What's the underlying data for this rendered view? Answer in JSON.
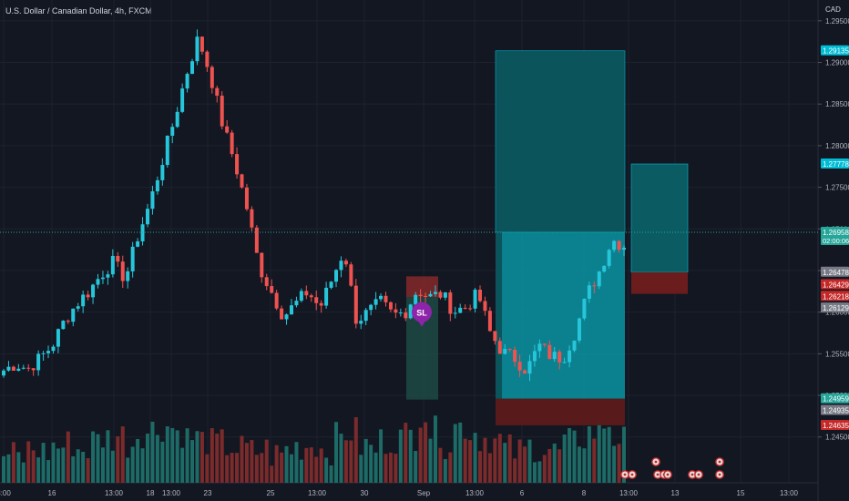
{
  "header": {
    "title": "U.S. Dollar / Canadian Dollar, 4h, FXCM"
  },
  "axis": {
    "currency": "CAD"
  },
  "colors": {
    "up": "#26c6da",
    "down": "#ef5350",
    "bg": "#131722",
    "target": "#00bcd4",
    "stop": "#8b1a1a",
    "grid": "#1e222d"
  },
  "chart_data": {
    "type": "candlestick",
    "title": "U.S. Dollar / Canadian Dollar, 4h, FXCM",
    "ylim": [
      1.2395,
      1.2975
    ],
    "y_ticks": [
      1.245,
      1.25,
      1.255,
      1.26,
      1.265,
      1.27,
      1.275,
      1.28,
      1.285,
      1.29,
      1.295
    ],
    "y_tick_labels": [
      "1.24500",
      "1.25000",
      "1.25500",
      "1.26000",
      "1.26500",
      "1.27000",
      "1.27500",
      "1.28000",
      "1.28500",
      "1.29000",
      "1.29500"
    ],
    "x_tick_labels": [
      "3:00",
      "16",
      "13:00",
      "18",
      "13:00",
      "23",
      "25",
      "13:00",
      "30",
      "Sep",
      "13:00",
      "6",
      "8",
      "13:00",
      "13",
      "15",
      "13:00"
    ],
    "close_path": [
      1.253,
      1.2538,
      1.2532,
      1.2545,
      1.256,
      1.259,
      1.261,
      1.2625,
      1.2645,
      1.266,
      1.264,
      1.269,
      1.273,
      1.278,
      1.283,
      1.2885,
      1.293,
      1.2885,
      1.2825,
      1.278,
      1.2725,
      1.2655,
      1.2625,
      1.2595,
      1.261,
      1.2625,
      1.2605,
      1.264,
      1.2675,
      1.259,
      1.26,
      1.2612,
      1.2596,
      1.26,
      1.2627,
      1.2618,
      1.2622,
      1.2601,
      1.2606,
      1.2622,
      1.2575,
      1.2552,
      1.2545,
      1.253,
      1.256,
      1.2547,
      1.2545,
      1.2577,
      1.2622,
      1.265,
      1.2687,
      1.268
    ],
    "volume_profile": [
      0.2,
      0.15,
      0.3,
      0.25,
      0.35,
      0.4,
      0.3,
      0.45,
      0.5,
      0.55,
      0.4,
      0.6,
      0.65,
      0.7,
      0.6,
      0.5,
      0.45,
      0.4,
      0.35,
      0.3,
      0.25,
      0.3,
      0.2,
      0.3,
      0.35,
      0.4,
      0.3,
      0.5,
      0.6,
      0.35,
      0.3,
      0.45,
      0.5,
      0.55,
      0.95,
      0.6,
      0.4,
      0.7,
      0.6,
      0.5,
      0.45,
      0.3,
      0.25,
      0.35,
      0.3,
      0.25,
      0.4,
      0.5,
      0.6,
      0.75,
      0.5,
      0.45
    ],
    "price_labels": [
      {
        "value": 1.29135,
        "text": "1.29135",
        "color": "#00bcd4",
        "y": 1.2914
      },
      {
        "value": 1.27778,
        "text": "1.27778",
        "color": "#00bcd4",
        "y": 1.2778
      },
      {
        "value": 1.26958,
        "text": "1.26958",
        "sub": "02:00:06",
        "color": "#26a69a",
        "y": 1.2696
      },
      {
        "value": 1.26478,
        "text": "1.26478",
        "color": "#787b86",
        "y": 1.2648
      },
      {
        "value": 1.26429,
        "text": "1.26429",
        "color": "#c62828",
        "y": 1.2633
      },
      {
        "value": 1.26218,
        "text": "1.26218",
        "color": "#c62828",
        "y": 1.2619
      },
      {
        "value": 1.26129,
        "text": "1.26129",
        "color": "#787b86",
        "y": 1.2605
      },
      {
        "value": 1.24959,
        "text": "1.24959",
        "color": "#26a69a",
        "y": 1.2496
      },
      {
        "value": 1.24935,
        "text": "1.24935",
        "color": "#787b86",
        "y": 1.2482
      },
      {
        "value": 1.24635,
        "text": "1.24635",
        "color": "#c62828",
        "y": 1.2464
      }
    ],
    "positions": [
      {
        "entry": 1.2696,
        "target": 1.2914,
        "stop": 1.2464
      },
      {
        "entry": 1.2648,
        "target": 1.2778,
        "stop": 1.2622
      },
      {
        "entry": 1.2618,
        "target": 1.2643,
        "stop": 1.2495
      }
    ],
    "marker": {
      "label": "SL",
      "price": 1.26
    }
  }
}
